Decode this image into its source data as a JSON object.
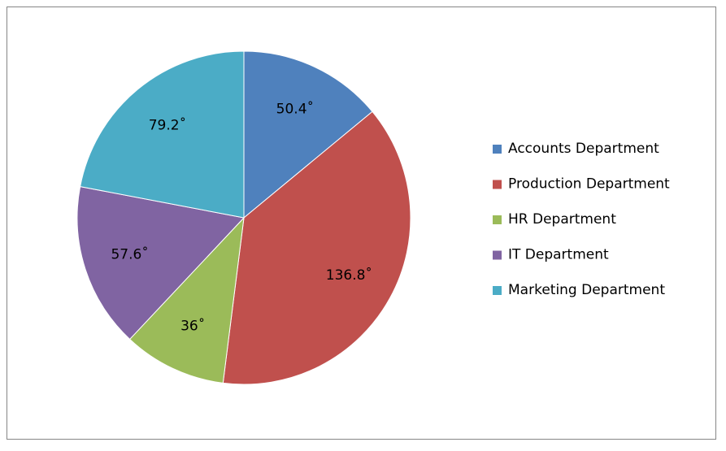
{
  "chart_data": {
    "type": "pie",
    "categories": [
      "Accounts Department",
      "Production Department",
      "HR Department",
      "IT Department",
      "Marketing Department"
    ],
    "values": [
      50.4,
      136.8,
      36,
      57.6,
      79.2
    ],
    "value_labels": [
      "50.4˚",
      "136.8˚",
      "36˚",
      "57.6˚",
      "79.2˚"
    ],
    "colors": [
      "#4f81bd",
      "#c0504d",
      "#9bbb59",
      "#8064a2",
      "#4bacc6"
    ],
    "legend": "right"
  }
}
